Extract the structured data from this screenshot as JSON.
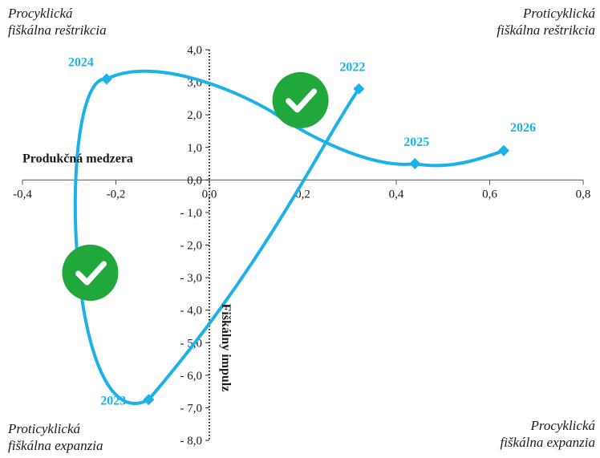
{
  "corners": {
    "top_left": [
      "Procyklická",
      "fiškálna reštrikcia"
    ],
    "top_right": [
      "Proticyklická",
      "fiškálna reštrikcia"
    ],
    "bottom_left": [
      "Proticyklická",
      "fiškálna expanzia"
    ],
    "bottom_right": [
      "Procyklická",
      "fiškálna expanzia"
    ]
  },
  "chart_data": {
    "type": "scatter",
    "xlabel": "Produkčná medzera",
    "ylabel": "Fiškálny impulz",
    "xlim": [
      -0.4,
      0.8
    ],
    "ylim": [
      -8.0,
      4.0
    ],
    "x_ticks": [
      "-0,4",
      "-0,2",
      "0,0",
      "0,2",
      "0,4",
      "0,6",
      "0,8"
    ],
    "y_ticks": [
      "4,0",
      "3,0",
      "2,0",
      "1,0",
      "0,0",
      "- 1,0",
      "- 2,0",
      "- 3,0",
      "- 4,0",
      "- 5,0",
      "- 6,0",
      "- 7,0",
      "- 8,0"
    ],
    "x_tick_values": [
      -0.4,
      -0.2,
      0.0,
      0.2,
      0.4,
      0.6,
      0.8
    ],
    "y_tick_values": [
      4,
      3,
      2,
      1,
      0,
      -1,
      -2,
      -3,
      -4,
      -5,
      -6,
      -7,
      -8
    ],
    "points": [
      {
        "label": "2022",
        "x": 0.32,
        "y": 2.8
      },
      {
        "label": "2023",
        "x": -0.13,
        "y": -6.75
      },
      {
        "label": "2024",
        "x": -0.22,
        "y": 3.1
      },
      {
        "label": "2025",
        "x": 0.44,
        "y": 0.5
      },
      {
        "label": "2026",
        "x": 0.63,
        "y": 0.9
      }
    ],
    "checkmarks": [
      {
        "x": 0.195,
        "y": 2.45
      },
      {
        "x": -0.255,
        "y": -2.85
      }
    ],
    "line_style": "smooth",
    "grid": false,
    "colors": {
      "series": "#1ab2e8",
      "check_circle": "#21a83c",
      "axis": "#555555"
    }
  }
}
